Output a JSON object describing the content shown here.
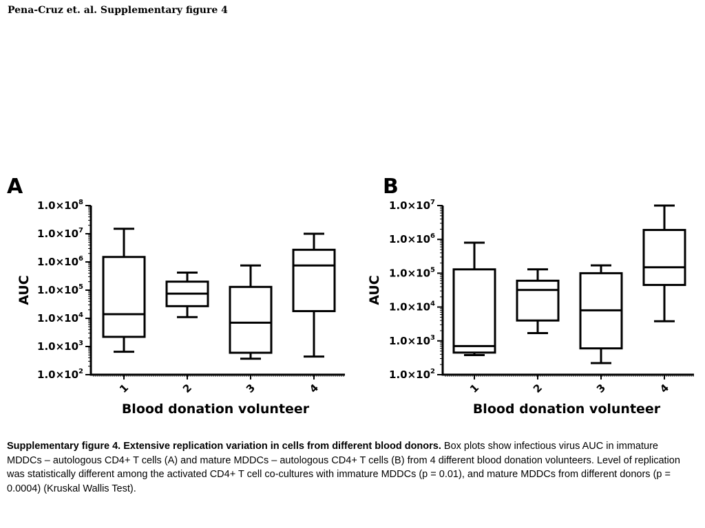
{
  "header": {
    "title": "Pena-Cruz et. al. Supplementary figure 4"
  },
  "panels": [
    {
      "letter": "A"
    },
    {
      "letter": "B"
    }
  ],
  "chart_data": [
    {
      "type": "box",
      "panel": "A",
      "xlabel": "Blood donation volunteer",
      "ylabel": "AUC",
      "yscale": "log",
      "ylim": [
        100,
        100000000
      ],
      "ytick_labels": [
        {
          "mant": "1.0×10",
          "exp": "2",
          "value": 100
        },
        {
          "mant": "1.0×10",
          "exp": "3",
          "value": 1000
        },
        {
          "mant": "1.0×10",
          "exp": "4",
          "value": 10000
        },
        {
          "mant": "1.0×10",
          "exp": "5",
          "value": 100000
        },
        {
          "mant": "1.0×10",
          "exp": "6",
          "value": 1000000
        },
        {
          "mant": "1.0×10",
          "exp": "7",
          "value": 10000000
        },
        {
          "mant": "1.0×10",
          "exp": "8",
          "value": 100000000
        }
      ],
      "categories": [
        "1",
        "2",
        "3",
        "4"
      ],
      "boxes": [
        {
          "min": 650,
          "q1": 2200,
          "median": 14000,
          "q3": 1500000,
          "max": 15000000
        },
        {
          "min": 11000,
          "q1": 27000,
          "median": 75000,
          "q3": 200000,
          "max": 420000
        },
        {
          "min": 370,
          "q1": 600,
          "median": 7000,
          "q3": 130000,
          "max": 750000
        },
        {
          "min": 440,
          "q1": 18000,
          "median": 750000,
          "q3": 2700000,
          "max": 10000000
        }
      ]
    },
    {
      "type": "box",
      "panel": "B",
      "xlabel": "Blood donation volunteer",
      "ylabel": "AUC",
      "yscale": "log",
      "ylim": [
        100,
        10000000
      ],
      "ytick_labels": [
        {
          "mant": "1.0×10",
          "exp": "2",
          "value": 100
        },
        {
          "mant": "1.0×10",
          "exp": "3",
          "value": 1000
        },
        {
          "mant": "1.0×10",
          "exp": "4",
          "value": 10000
        },
        {
          "mant": "1.0×10",
          "exp": "5",
          "value": 100000
        },
        {
          "mant": "1.0×10",
          "exp": "6",
          "value": 1000000
        },
        {
          "mant": "1.0×10",
          "exp": "7",
          "value": 10000000
        }
      ],
      "categories": [
        "1",
        "2",
        "3",
        "4"
      ],
      "boxes": [
        {
          "min": 380,
          "q1": 450,
          "median": 700,
          "q3": 130000,
          "max": 800000
        },
        {
          "min": 1700,
          "q1": 4000,
          "median": 32000,
          "q3": 60000,
          "max": 130000
        },
        {
          "min": 220,
          "q1": 600,
          "median": 8000,
          "q3": 100000,
          "max": 170000
        },
        {
          "min": 3800,
          "q1": 45000,
          "median": 150000,
          "q3": 1900000,
          "max": 10000000
        }
      ]
    }
  ],
  "caption": {
    "bold": "Supplementary figure 4.  Extensive replication variation in cells from different blood donors.",
    "text": "  Box plots show infectious virus AUC in immature MDDCs – autologous CD4+ T cells (A) and mature MDDCs – autologous CD4+ T cells (B) from 4 different blood donation volunteers.  Level of replication was statistically different among the activated CD4+ T cell co-cultures with immature MDDCs (p = 0.01), and mature MDDCs from different donors (p = 0.0004) (Kruskal Wallis Test)."
  }
}
